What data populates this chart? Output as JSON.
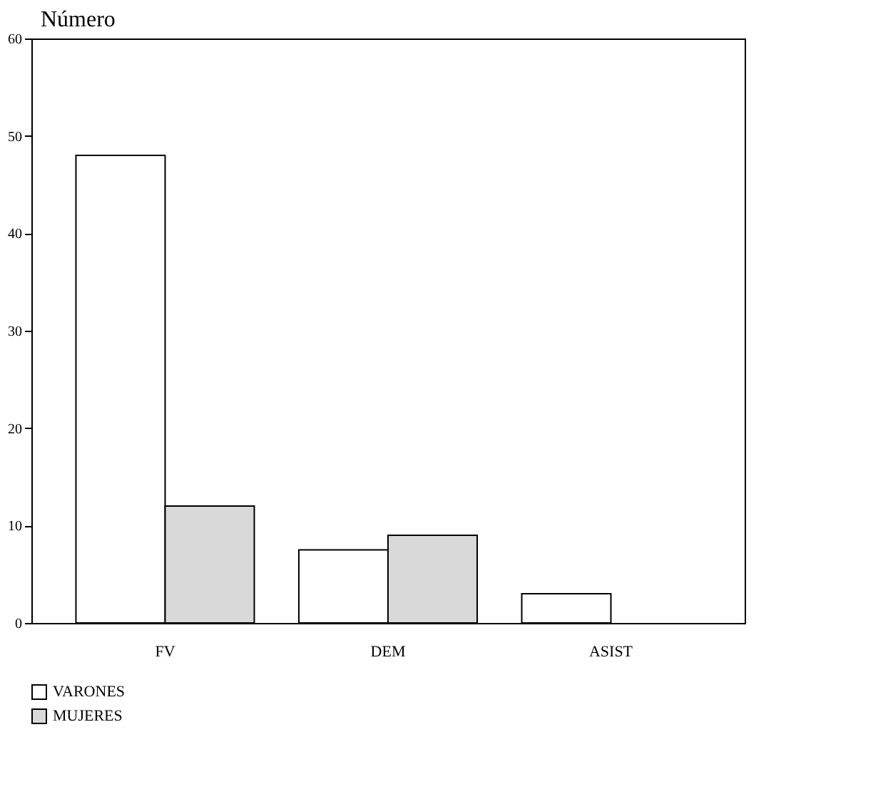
{
  "chart_data": {
    "type": "bar",
    "ylabel": "Número",
    "categories": [
      "FV",
      "DEM",
      "ASIST"
    ],
    "series": [
      {
        "name": "VARONES",
        "color": "#ffffff",
        "values": [
          48,
          7.5,
          3
        ]
      },
      {
        "name": "MUJERES",
        "color": "#d9d9d9",
        "values": [
          12,
          9,
          0
        ]
      }
    ],
    "ylim": [
      0,
      60
    ],
    "yticks": [
      0,
      10,
      20,
      30,
      40,
      50,
      60
    ],
    "grid": false,
    "legend": "bottom"
  }
}
